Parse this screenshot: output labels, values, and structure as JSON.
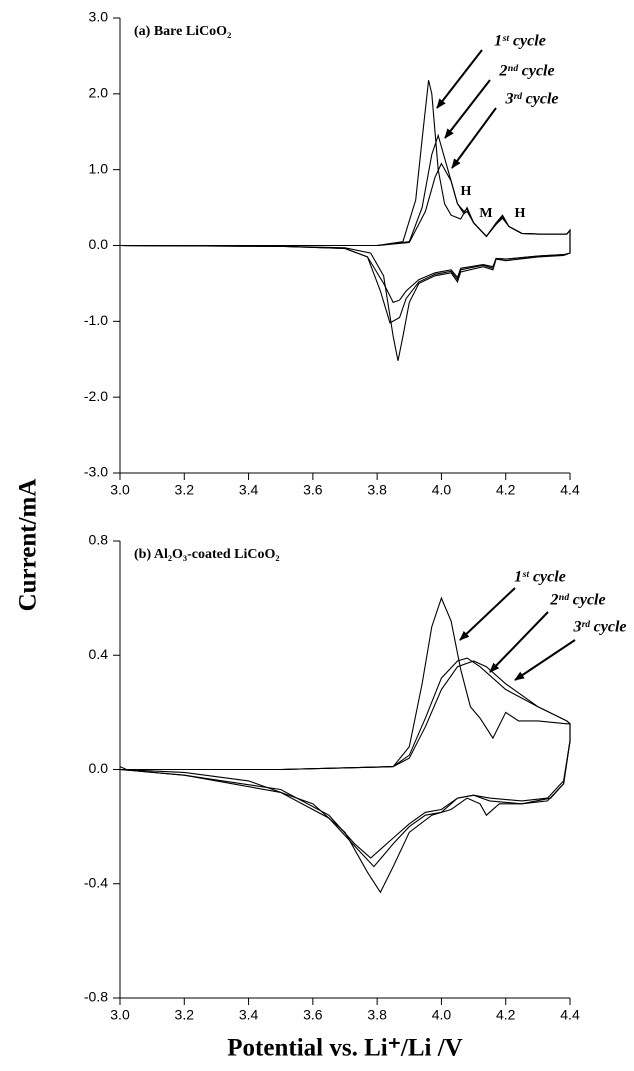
{
  "y_label": "Current/mA",
  "x_label": "Potential vs. Li⁺/Li /V",
  "chart_data": [
    {
      "type": "line",
      "title": "(a) Bare LiCoO₂",
      "xlim": [
        3.0,
        4.4
      ],
      "xticks": [
        {
          "value": 3,
          "label": "3.0"
        },
        3.2,
        3.4,
        3.6,
        3.8,
        {
          "value": 4,
          "label": "4.0"
        },
        4.2,
        4.4
      ],
      "ylim": [
        -3.0,
        3.0
      ],
      "yticks": [
        {
          "value": -3,
          "label": "-3.0"
        },
        {
          "value": -2,
          "label": "-2.0"
        },
        {
          "value": -1,
          "label": "-1.0"
        },
        {
          "value": 0,
          "label": "0.0"
        },
        {
          "value": 1,
          "label": "1.0"
        },
        {
          "value": 2,
          "label": "2.0"
        },
        {
          "value": 3,
          "label": "3.0"
        }
      ],
      "annotations": [
        "1ˢᵗ cycle",
        "2ⁿᵈ cycle",
        "3ʳᵈ cycle",
        "H",
        "M",
        "H"
      ],
      "series": [
        {
          "color": "#000000",
          "x": [
            3.0,
            3.5,
            3.8,
            3.88,
            3.92,
            3.94,
            3.96,
            3.97,
            3.99,
            4.01,
            4.03,
            4.06,
            4.08,
            4.1,
            4.14,
            4.17,
            4.19,
            4.21,
            4.25,
            4.3,
            4.39,
            4.4,
            4.4,
            4.38,
            4.3,
            4.2,
            4.17,
            4.16,
            4.13,
            4.06,
            4.05,
            4.03,
            3.98,
            3.93,
            3.9,
            3.88,
            3.865,
            3.85,
            3.82,
            3.78,
            3.7,
            3.5,
            3.0
          ],
          "values": [
            0,
            0,
            0,
            0.05,
            0.6,
            1.4,
            2.18,
            2.0,
            1.0,
            0.55,
            0.4,
            0.35,
            0.5,
            0.3,
            0.12,
            0.3,
            0.4,
            0.25,
            0.16,
            0.15,
            0.15,
            0.2,
            -0.1,
            -0.13,
            -0.15,
            -0.2,
            -0.18,
            -0.32,
            -0.28,
            -0.35,
            -0.48,
            -0.36,
            -0.4,
            -0.5,
            -0.75,
            -1.2,
            -1.52,
            -1.2,
            -0.4,
            -0.1,
            -0.03,
            -0.01,
            0
          ]
        },
        {
          "color": "#000000",
          "x": [
            3.0,
            3.5,
            3.8,
            3.9,
            3.94,
            3.97,
            3.99,
            4.02,
            4.05,
            4.07,
            4.08,
            4.1,
            4.14,
            4.17,
            4.19,
            4.21,
            4.25,
            4.3,
            4.39,
            4.4,
            4.4,
            4.38,
            4.3,
            4.2,
            4.17,
            4.16,
            4.13,
            4.06,
            4.05,
            4.03,
            3.98,
            3.93,
            3.89,
            3.87,
            3.84,
            3.81,
            3.77,
            3.7,
            3.5,
            3.0
          ],
          "values": [
            0,
            0,
            0,
            0.05,
            0.5,
            1.2,
            1.45,
            1.0,
            0.55,
            0.45,
            0.48,
            0.3,
            0.12,
            0.28,
            0.38,
            0.25,
            0.16,
            0.15,
            0.15,
            0.2,
            -0.1,
            -0.12,
            -0.14,
            -0.18,
            -0.17,
            -0.3,
            -0.26,
            -0.32,
            -0.45,
            -0.34,
            -0.38,
            -0.48,
            -0.7,
            -0.95,
            -1.02,
            -0.6,
            -0.15,
            -0.04,
            -0.01,
            0
          ]
        },
        {
          "color": "#000000",
          "x": [
            3.0,
            3.5,
            3.8,
            3.9,
            3.95,
            3.98,
            4.0,
            4.03,
            4.05,
            4.07,
            4.08,
            4.1,
            4.14,
            4.17,
            4.19,
            4.21,
            4.25,
            4.3,
            4.39,
            4.4,
            4.4,
            4.38,
            4.3,
            4.2,
            4.17,
            4.16,
            4.13,
            4.06,
            4.05,
            4.03,
            3.98,
            3.93,
            3.89,
            3.87,
            3.85,
            3.82,
            3.77,
            3.7,
            3.5,
            3.0
          ],
          "values": [
            0,
            0,
            0,
            0.04,
            0.45,
            0.9,
            1.08,
            0.85,
            0.55,
            0.42,
            0.45,
            0.3,
            0.12,
            0.28,
            0.36,
            0.25,
            0.16,
            0.15,
            0.15,
            0.2,
            -0.1,
            -0.12,
            -0.14,
            -0.18,
            -0.17,
            -0.28,
            -0.25,
            -0.3,
            -0.42,
            -0.32,
            -0.36,
            -0.45,
            -0.6,
            -0.72,
            -0.75,
            -0.5,
            -0.15,
            -0.04,
            -0.01,
            0
          ]
        }
      ]
    },
    {
      "type": "line",
      "title": "(b) Al₂O₃-coated LiCoO₂",
      "xlim": [
        3.0,
        4.4
      ],
      "xticks": [
        {
          "value": 3,
          "label": "3.0"
        },
        3.2,
        3.4,
        3.6,
        3.8,
        {
          "value": 4,
          "label": "4.0"
        },
        4.2,
        4.4
      ],
      "ylim": [
        -0.8,
        0.8
      ],
      "yticks": [
        -0.8,
        -0.4,
        {
          "value": 0,
          "label": "0.0"
        },
        0.4,
        0.8
      ],
      "annotations": [
        "1ˢᵗ cycle",
        "2ⁿᵈ cycle",
        "3ʳᵈ cycle"
      ],
      "series": [
        {
          "color": "#000000",
          "x": [
            3.0,
            3.02,
            3.5,
            3.85,
            3.9,
            3.94,
            3.97,
            4.0,
            4.03,
            4.06,
            4.09,
            4.12,
            4.16,
            4.2,
            4.24,
            4.3,
            4.39,
            4.4,
            4.4,
            4.38,
            4.34,
            4.25,
            4.18,
            4.14,
            4.12,
            4.08,
            4.03,
            3.97,
            3.9,
            3.85,
            3.81,
            3.77,
            3.7,
            3.6,
            3.4,
            3.2,
            3.0
          ],
          "values": [
            0.01,
            0,
            0,
            0.01,
            0.08,
            0.3,
            0.5,
            0.6,
            0.52,
            0.35,
            0.22,
            0.18,
            0.11,
            0.2,
            0.17,
            0.17,
            0.16,
            0.16,
            0.1,
            -0.05,
            -0.1,
            -0.12,
            -0.12,
            -0.16,
            -0.12,
            -0.1,
            -0.14,
            -0.16,
            -0.22,
            -0.34,
            -0.43,
            -0.36,
            -0.22,
            -0.12,
            -0.04,
            -0.01,
            0
          ]
        },
        {
          "color": "#000000",
          "x": [
            3.0,
            3.5,
            3.85,
            3.9,
            3.95,
            4.0,
            4.05,
            4.08,
            4.12,
            4.2,
            4.3,
            4.39,
            4.4,
            4.4,
            4.38,
            4.33,
            4.25,
            4.15,
            4.1,
            4.05,
            4.0,
            3.95,
            3.9,
            3.85,
            3.79,
            3.74,
            3.65,
            3.5,
            3.2,
            3.0
          ],
          "values": [
            0,
            0,
            0.01,
            0.05,
            0.18,
            0.32,
            0.38,
            0.39,
            0.36,
            0.28,
            0.22,
            0.17,
            0.16,
            0.1,
            -0.05,
            -0.11,
            -0.12,
            -0.11,
            -0.09,
            -0.1,
            -0.15,
            -0.16,
            -0.2,
            -0.26,
            -0.34,
            -0.28,
            -0.17,
            -0.08,
            -0.02,
            0
          ]
        },
        {
          "color": "#000000",
          "x": [
            3.0,
            3.5,
            3.85,
            3.9,
            3.95,
            4.0,
            4.05,
            4.1,
            4.14,
            4.2,
            4.3,
            4.39,
            4.4,
            4.4,
            4.38,
            4.33,
            4.25,
            4.15,
            4.1,
            4.05,
            4.0,
            3.95,
            3.9,
            3.85,
            3.78,
            3.73,
            3.65,
            3.5,
            3.2,
            3.0
          ],
          "values": [
            0,
            0,
            0.01,
            0.04,
            0.15,
            0.28,
            0.36,
            0.38,
            0.36,
            0.3,
            0.22,
            0.17,
            0.16,
            0.1,
            -0.04,
            -0.1,
            -0.11,
            -0.1,
            -0.09,
            -0.1,
            -0.14,
            -0.15,
            -0.19,
            -0.24,
            -0.31,
            -0.26,
            -0.16,
            -0.07,
            -0.02,
            0
          ]
        }
      ]
    }
  ]
}
